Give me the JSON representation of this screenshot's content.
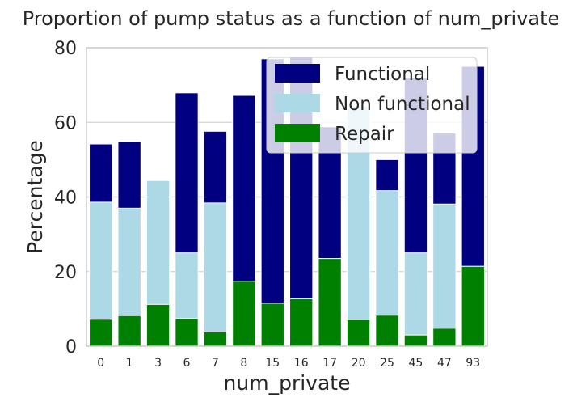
{
  "chart_data": {
    "type": "bar",
    "stacked": false,
    "title": "Proportion of pump status as a function of num_private",
    "xlabel": "num_private",
    "ylabel": "Percentage",
    "ylim": [
      0,
      80
    ],
    "yticks": [
      0,
      20,
      40,
      60,
      80
    ],
    "grid": "horizontal",
    "legend_position": "top-right",
    "categories": [
      "0",
      "1",
      "3",
      "6",
      "7",
      "8",
      "15",
      "16",
      "17",
      "20",
      "25",
      "45",
      "47",
      "93"
    ],
    "series": [
      {
        "name": "Functional",
        "color": "#000080",
        "values": [
          54.2,
          54.8,
          44.4,
          67.9,
          57.6,
          67.2,
          77.0,
          77.5,
          58.8,
          64.3,
          50.0,
          72.0,
          57.1,
          75.0
        ]
      },
      {
        "name": "Non functional",
        "color": "#add8e6",
        "values": [
          38.6,
          37.0,
          44.4,
          25.0,
          38.4,
          17.2,
          11.5,
          12.5,
          23.5,
          64.3,
          41.7,
          25.0,
          38.1,
          21.4
        ]
      },
      {
        "name": "Repair",
        "color": "#008000",
        "values": [
          7.2,
          8.2,
          11.2,
          7.4,
          3.8,
          17.4,
          11.5,
          12.7,
          23.5,
          7.1,
          8.3,
          3.0,
          4.8,
          21.4
        ]
      }
    ]
  }
}
